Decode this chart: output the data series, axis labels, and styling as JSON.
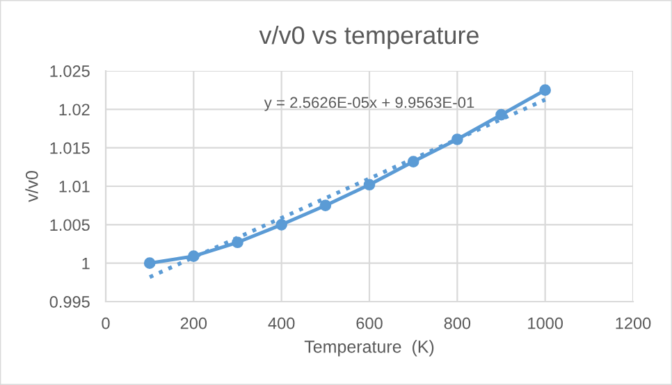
{
  "chart_data": {
    "type": "line",
    "title": "v/v0 vs temperature",
    "xlabel": "Temperature  (K)",
    "ylabel": "v/v0",
    "x": [
      100,
      200,
      300,
      400,
      500,
      600,
      700,
      800,
      900,
      1000
    ],
    "series": [
      {
        "color": "#5b9bd5",
        "values": [
          1.0,
          1.0009,
          1.0027,
          1.005,
          1.0075,
          1.0102,
          1.0132,
          1.0161,
          1.0193,
          1.0225
        ],
        "marker": "circle",
        "line_style": "solid"
      },
      {
        "type": "line",
        "color": "#5b9bd5",
        "x": [
          100,
          1000
        ],
        "values": [
          0.99819,
          1.02126
        ],
        "marker": "none",
        "line_style": "dotted"
      }
    ],
    "annotations": [
      "y = 2.5626E-05x + 9.9563E-01"
    ],
    "xlim": [
      0,
      1200
    ],
    "xticks": [
      0,
      200,
      400,
      600,
      800,
      1000,
      1200
    ],
    "ylim": [
      0.995,
      1.025
    ],
    "yticks": [
      {
        "value": 0.995,
        "label": "0.995"
      },
      {
        "value": 1.0,
        "label": "1"
      },
      {
        "value": 1.005,
        "label": "1.005"
      },
      {
        "value": 1.01,
        "label": "1.01"
      },
      {
        "value": 1.015,
        "label": "1.015"
      },
      {
        "value": 1.02,
        "label": "1.02"
      },
      {
        "value": 1.025,
        "label": "1.025"
      }
    ],
    "grid": true,
    "legend": false
  }
}
